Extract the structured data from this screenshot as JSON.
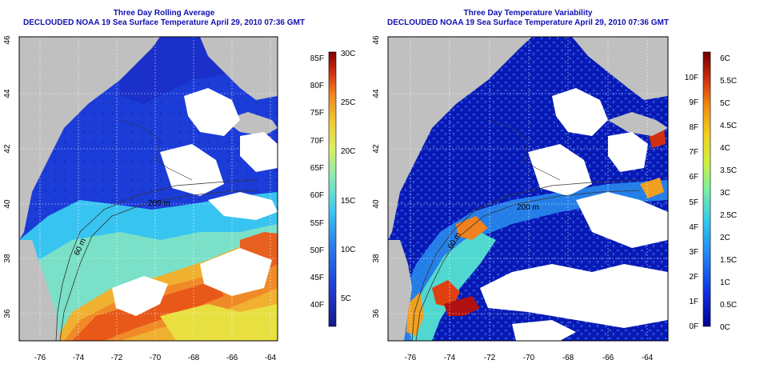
{
  "panels": [
    {
      "title_line1": "Three Day Rolling Average",
      "title_line2": "DECLOUDED NOAA 19 Sea Surface Temperature April 29, 2010 07:36 GMT",
      "lon_ticks": [
        "-76",
        "-74",
        "-72",
        "-70",
        "-68",
        "-66",
        "-64"
      ],
      "lat_ticks": [
        "36",
        "38",
        "40",
        "42",
        "44",
        "46"
      ],
      "contour_labels": [
        "200 m",
        "60 m"
      ],
      "colorbar_left_labels": [
        "85F",
        "80F",
        "75F",
        "70F",
        "65F",
        "60F",
        "55F",
        "50F",
        "45F",
        "40F"
      ],
      "colorbar_right_labels": [
        "30C",
        "25C",
        "20C",
        "15C",
        "10C",
        "5C"
      ]
    },
    {
      "title_line1": "Three Day Temperature Variability",
      "title_line2": "DECLOUDED NOAA 19 Sea Surface Temperature April 29, 2010 07:36 GMT",
      "lon_ticks": [
        "-76",
        "-74",
        "-72",
        "-70",
        "-68",
        "-66",
        "-64"
      ],
      "lat_ticks": [
        "36",
        "38",
        "40",
        "42",
        "44",
        "46"
      ],
      "contour_labels": [
        "200 m",
        "60 m"
      ],
      "colorbar_left_labels": [
        "10F",
        "9F",
        "8F",
        "7F",
        "6F",
        "5F",
        "4F",
        "3F",
        "2F",
        "1F",
        "0F"
      ],
      "colorbar_right_labels": [
        "6C",
        "5.5C",
        "5C",
        "4.5C",
        "4C",
        "3.5C",
        "3C",
        "2.5C",
        "2C",
        "1.5C",
        "1C",
        "0.5C",
        "0C"
      ]
    }
  ],
  "colors": {
    "land": "#c0c0c0",
    "cloud": "#ffffff",
    "title": "#1010b0",
    "sst_scale": [
      "#1a1a8a",
      "#1e3cd0",
      "#2c7ce8",
      "#3cc0f0",
      "#7ae6c0",
      "#c8f070",
      "#f0e040",
      "#f0a020",
      "#e85010",
      "#b01010",
      "#700000"
    ],
    "var_scale": [
      "#000090",
      "#1030e0",
      "#2080f0",
      "#30c8f0",
      "#70f0b0",
      "#c0f050",
      "#f0e020",
      "#f0a010",
      "#e05010",
      "#b01010",
      "#700000"
    ]
  }
}
